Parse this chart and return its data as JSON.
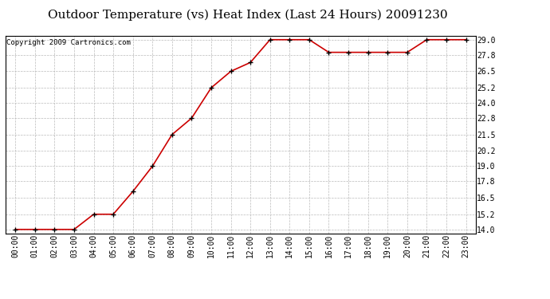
{
  "title": "Outdoor Temperature (vs) Heat Index (Last 24 Hours) 20091230",
  "copyright": "Copyright 2009 Cartronics.com",
  "x_labels": [
    "00:00",
    "01:00",
    "02:00",
    "03:00",
    "04:00",
    "05:00",
    "06:00",
    "07:00",
    "08:00",
    "09:00",
    "10:00",
    "11:00",
    "12:00",
    "13:00",
    "14:00",
    "15:00",
    "16:00",
    "17:00",
    "18:00",
    "19:00",
    "20:00",
    "21:00",
    "22:00",
    "23:00"
  ],
  "y_values": [
    14.0,
    14.0,
    14.0,
    14.0,
    15.2,
    15.2,
    17.0,
    19.0,
    21.5,
    22.8,
    25.2,
    26.5,
    27.2,
    29.0,
    29.0,
    29.0,
    28.0,
    28.0,
    28.0,
    28.0,
    28.0,
    29.0,
    29.0,
    29.0
  ],
  "y_ticks": [
    14.0,
    15.2,
    16.5,
    17.8,
    19.0,
    20.2,
    21.5,
    22.8,
    24.0,
    25.2,
    26.5,
    27.8,
    29.0
  ],
  "y_min": 14.0,
  "y_max": 29.0,
  "line_color": "#cc0000",
  "marker_color": "#000000",
  "bg_color": "#ffffff",
  "grid_color": "#bbbbbb",
  "title_fontsize": 11,
  "copyright_fontsize": 6.5,
  "tick_fontsize": 7
}
